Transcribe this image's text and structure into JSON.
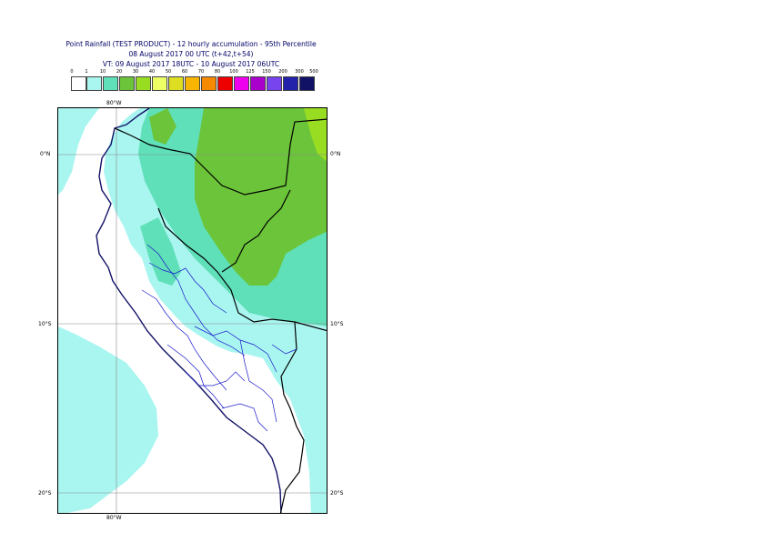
{
  "title": {
    "line1": "Point Rainfall (TEST PRODUCT) - 12 hourly accumulation - 95th Percentile",
    "line2": "08 August 2017 00 UTC (t+42,t+54)",
    "line3": "VT: 09 August 2017 18UTC - 10 August 2017 06UTC"
  },
  "scale": {
    "labels": [
      "0",
      "1",
      "10",
      "20",
      "30",
      "40",
      "50",
      "60",
      "70",
      "80",
      "100",
      "125",
      "150",
      "200",
      "300",
      "500"
    ],
    "colors": [
      "#ffffff",
      "#a9f5f0",
      "#5fe0b8",
      "#6cc43a",
      "#99dd22",
      "#eeff66",
      "#dddd22",
      "#f7b500",
      "#f58a00",
      "#ee0000",
      "#ee00ee",
      "#aa00cc",
      "#7744ee",
      "#2222aa",
      "#111166"
    ]
  },
  "axes": {
    "lon_top": "80°W",
    "lon_bottom": "80°W",
    "lat_left": [
      "0°N",
      "10°S",
      "20°S"
    ],
    "lat_right": [
      "0°N",
      "10°S",
      "20°S"
    ]
  }
}
